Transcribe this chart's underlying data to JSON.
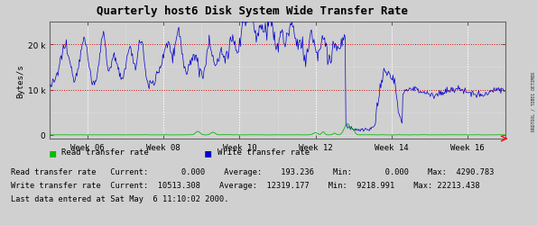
{
  "title": "Quarterly host6 Disk System Wide Transfer Rate",
  "ylabel": "Bytes/s",
  "right_label": "RRDTOOL / TOBEI OETIMER",
  "x_tick_labels": [
    "Week 06",
    "Week 08",
    "Week 10",
    "Week 12",
    "Week 14",
    "Week 16"
  ],
  "ytick_values": [
    0,
    10000,
    20000
  ],
  "ymax": 25000,
  "ymin": -800,
  "background_color": "#d0d0d0",
  "plot_bg_color": "#d0d0d0",
  "grid_color": "#ffffff",
  "hline_color": "#cc0000",
  "hline_values": [
    10000,
    20000
  ],
  "write_color": "#0000cc",
  "read_color": "#00bb00",
  "legend": [
    {
      "label": "Read transfer rate",
      "color": "#00bb00"
    },
    {
      "label": "Write transfer rate",
      "color": "#0000cc"
    }
  ],
  "stats_line1": "Read transfer rate   Current:       0.000    Average:    193.236    Min:       0.000    Max:  4290.783",
  "stats_line2": "Write transfer rate  Current:  10513.308    Average:  12319.177    Min:  9218.991    Max: 22213.438",
  "last_data_line": "Last data entered at Sat May  6 11:10:02 2000.",
  "num_points": 600
}
